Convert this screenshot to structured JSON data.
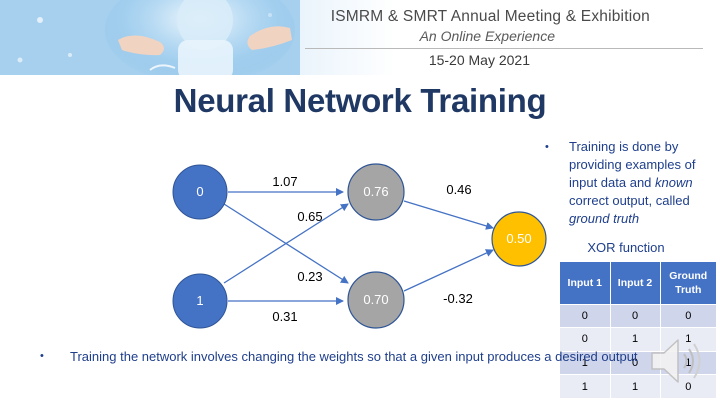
{
  "banner": {
    "title": "ISMRM & SMRT Annual Meeting & Exhibition",
    "subtitle": "An Online Experience",
    "dates": "15-20 May 2021"
  },
  "slide": {
    "title": "Neural Network Training",
    "bullet_right_marker": "•",
    "bullet_right": {
      "part1": "Training is done by providing examples of input data and ",
      "part2": "known",
      "part3": " correct output, called ",
      "part4": "ground truth"
    },
    "bullet_bottom_marker": "•",
    "bullet_bottom": "Training the network involves changing the weights so that a given input produces a desired output"
  },
  "network": {
    "inputs": [
      "0",
      "1"
    ],
    "hidden": [
      "0.76",
      "0.70"
    ],
    "output": "0.50",
    "weights": {
      "in0_h0": "1.07",
      "in1_h0": "0.65",
      "in0_h1": "0.23",
      "in1_h1": "0.31",
      "h0_out": "0.46",
      "h1_out": "-0.32"
    },
    "colors": {
      "input": "#4472c4",
      "hidden": "#a5a5a5",
      "output": "#ffc000",
      "edge": "#4472c4"
    }
  },
  "xor": {
    "title": "XOR function",
    "headers": [
      "Input 1",
      "Input 2",
      "Ground Truth"
    ],
    "rows": [
      [
        "0",
        "0",
        "0"
      ],
      [
        "0",
        "1",
        "1"
      ],
      [
        "1",
        "0",
        "1"
      ],
      [
        "1",
        "1",
        "0"
      ]
    ]
  },
  "icons": {
    "speaker": "speaker-icon"
  }
}
